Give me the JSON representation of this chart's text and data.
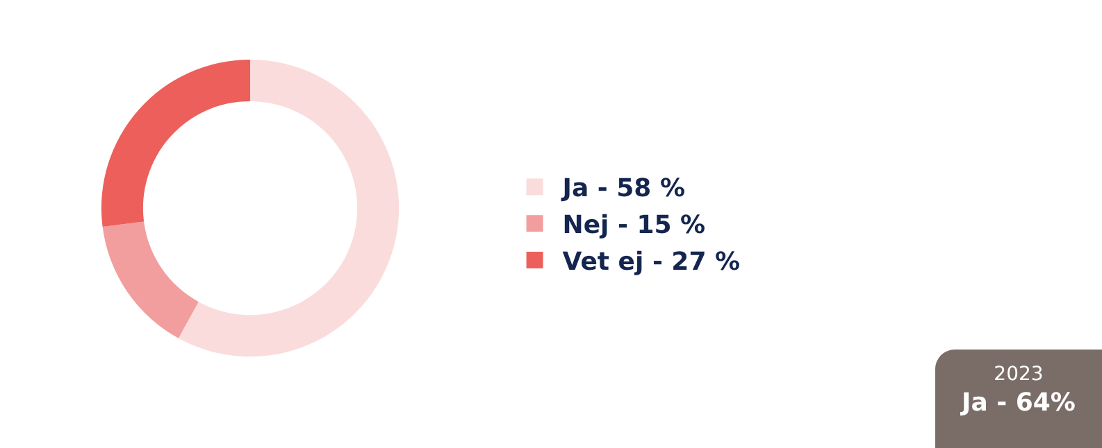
{
  "chart_data": {
    "type": "donut",
    "categories": [
      "Ja - 58 %",
      "Nej - 15 %",
      "Vet ej - 27 %"
    ],
    "values": [
      58,
      15,
      27
    ],
    "colors": [
      "#fadcdc",
      "#f29e9e",
      "#ec5f5b"
    ],
    "legend": "right",
    "annotations": [
      "2023",
      "Ja - 64%"
    ]
  }
}
